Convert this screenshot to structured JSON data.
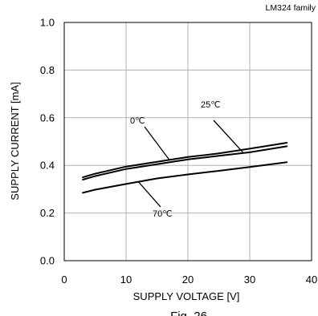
{
  "chart_data": {
    "type": "line",
    "title": "LM324 family",
    "caption": "Fig. 26",
    "xlabel": "SUPPLY VOLTAGE [V]",
    "ylabel": "SUPPLY CURRENT [mA]",
    "xlim": [
      0,
      40
    ],
    "ylim": [
      0.0,
      1.0
    ],
    "xticks": [
      "0",
      "10",
      "20",
      "30",
      "40"
    ],
    "yticks": [
      "0.0",
      "0.2",
      "0.4",
      "0.6",
      "0.8",
      "1.0"
    ],
    "grid": true,
    "series": [
      {
        "name": "0℃",
        "x": [
          3,
          5,
          10,
          15,
          20,
          25,
          30,
          36
        ],
        "y": [
          0.35,
          0.365,
          0.395,
          0.415,
          0.435,
          0.45,
          0.47,
          0.495
        ]
      },
      {
        "name": "25℃",
        "x": [
          3,
          5,
          10,
          15,
          20,
          25,
          30,
          36
        ],
        "y": [
          0.34,
          0.355,
          0.385,
          0.405,
          0.425,
          0.44,
          0.455,
          0.48
        ]
      },
      {
        "name": "70℃",
        "x": [
          3,
          5,
          10,
          15,
          20,
          25,
          30,
          36
        ],
        "y": [
          0.285,
          0.298,
          0.322,
          0.345,
          0.362,
          0.377,
          0.393,
          0.413
        ]
      }
    ]
  }
}
